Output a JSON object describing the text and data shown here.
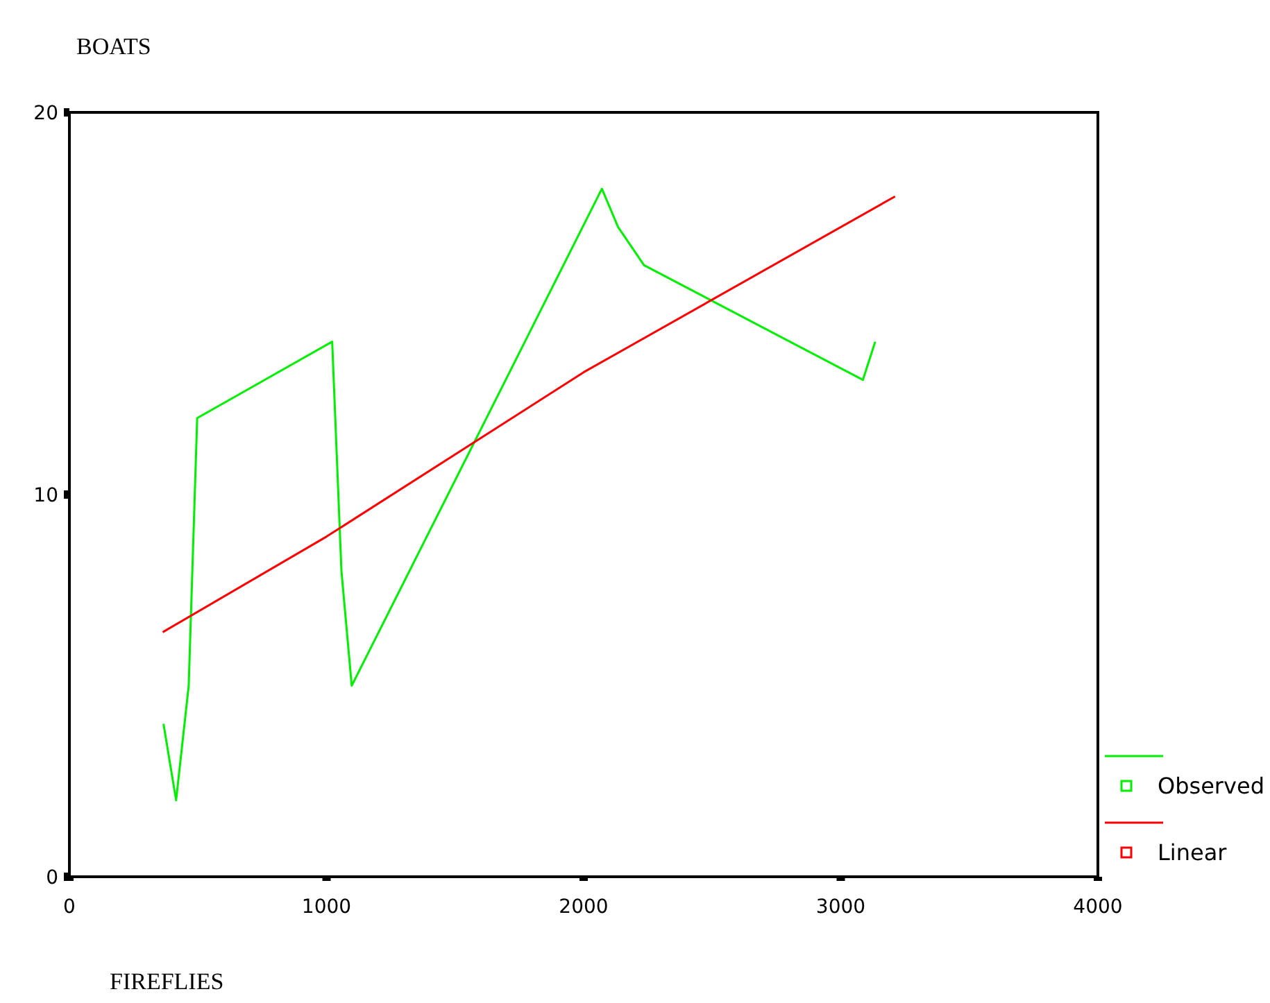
{
  "chart_data": {
    "type": "line",
    "title": "BOATS",
    "annotations": [
      "FIREFLIES"
    ],
    "series": [
      {
        "name": "Observed",
        "color": "#00ee00",
        "x": [
          366,
          415,
          464,
          497,
          1022,
          1058,
          1098,
          2071,
          2134,
          2235,
          3086,
          3134
        ],
        "values": [
          4,
          2,
          5,
          12,
          14,
          8,
          5,
          18,
          17,
          16,
          13,
          14
        ]
      },
      {
        "name": "Linear",
        "color": "#ff0000",
        "x": [
          363,
          1000,
          2000,
          3211
        ],
        "values": [
          6.4,
          8.9,
          13.2,
          17.8
        ]
      }
    ],
    "xlim": [
      0,
      4000
    ],
    "xticks": [
      0,
      1000,
      2000,
      3000,
      4000
    ],
    "ylim": [
      0,
      20
    ],
    "yticks": [
      0,
      10,
      20
    ],
    "grid": false,
    "legend": "bottom right"
  }
}
